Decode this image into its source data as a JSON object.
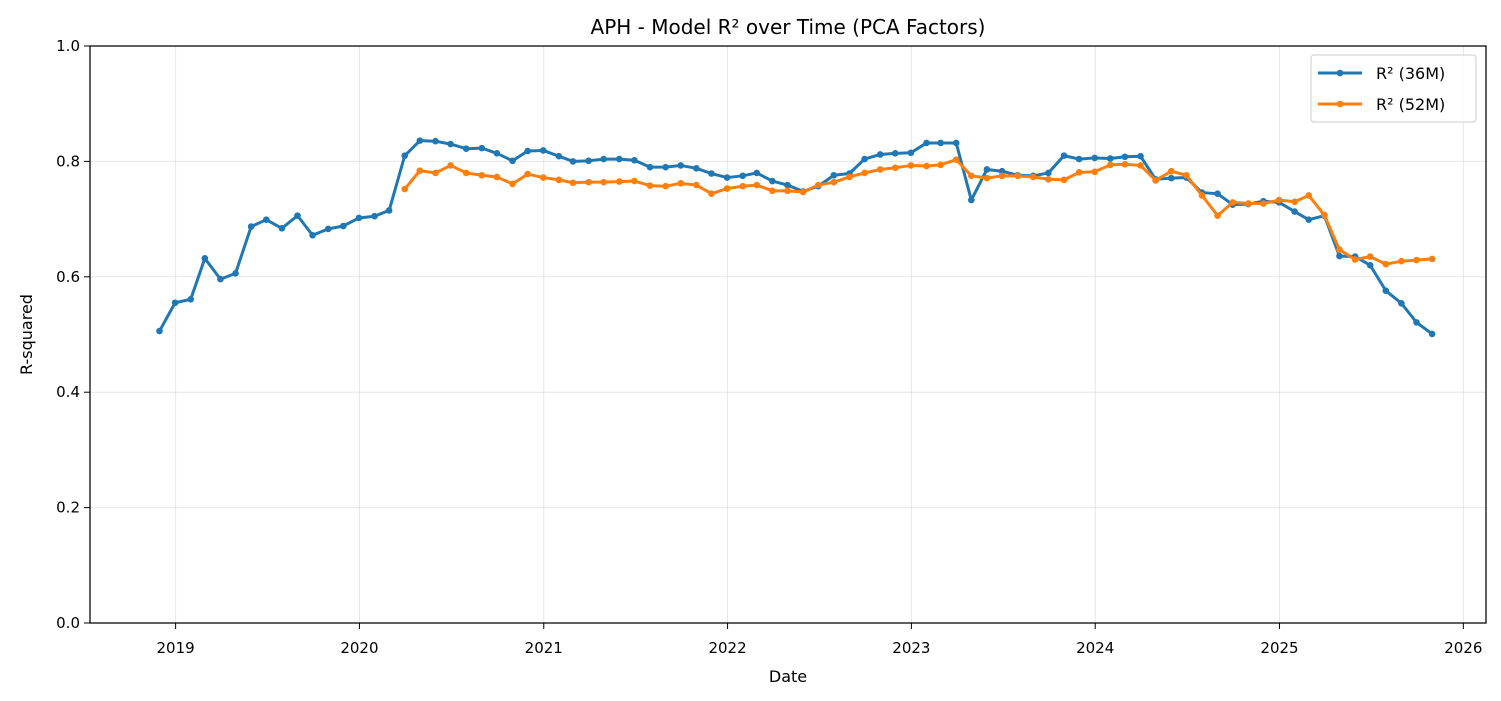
{
  "chart_data": {
    "type": "line",
    "title": "APH - Model R² over Time (PCA Factors)",
    "xlabel": "Date",
    "ylabel": "R-squared",
    "ylim": [
      0.0,
      1.0
    ],
    "xlim": [
      "2018-07-15",
      "2026-02-15"
    ],
    "yticks": [
      0.0,
      0.2,
      0.4,
      0.6,
      0.8,
      1.0
    ],
    "ytick_labels": [
      "0.0",
      "0.2",
      "0.4",
      "0.6",
      "0.8",
      "1.0"
    ],
    "xticks": [
      "2019-01-01",
      "2020-01-01",
      "2021-01-01",
      "2022-01-01",
      "2023-01-01",
      "2024-01-01",
      "2025-01-01",
      "2026-01-01"
    ],
    "xtick_labels": [
      "2019",
      "2020",
      "2021",
      "2022",
      "2023",
      "2024",
      "2025",
      "2026"
    ],
    "grid": true,
    "legend_position": "top-right",
    "series": [
      {
        "name": "R² (36M)",
        "color": "#1f77b4",
        "x": [
          "2018-11-30",
          "2018-12-31",
          "2019-01-31",
          "2019-02-28",
          "2019-03-31",
          "2019-04-30",
          "2019-05-31",
          "2019-06-30",
          "2019-07-31",
          "2019-08-31",
          "2019-09-30",
          "2019-10-31",
          "2019-11-30",
          "2019-12-31",
          "2020-01-31",
          "2020-02-29",
          "2020-03-31",
          "2020-04-30",
          "2020-05-31",
          "2020-06-30",
          "2020-07-31",
          "2020-08-31",
          "2020-09-30",
          "2020-10-31",
          "2020-11-30",
          "2020-12-31",
          "2021-01-31",
          "2021-02-28",
          "2021-03-31",
          "2021-04-30",
          "2021-05-31",
          "2021-06-30",
          "2021-07-31",
          "2021-08-31",
          "2021-09-30",
          "2021-10-31",
          "2021-11-30",
          "2021-12-31",
          "2022-01-31",
          "2022-02-28",
          "2022-03-31",
          "2022-04-30",
          "2022-05-31",
          "2022-06-30",
          "2022-07-31",
          "2022-08-31",
          "2022-09-30",
          "2022-10-31",
          "2022-11-30",
          "2022-12-31",
          "2023-01-31",
          "2023-02-28",
          "2023-03-31",
          "2023-04-30",
          "2023-05-31",
          "2023-06-30",
          "2023-07-31",
          "2023-08-31",
          "2023-09-30",
          "2023-10-31",
          "2023-11-30",
          "2023-12-31",
          "2024-01-31",
          "2024-02-29",
          "2024-03-31",
          "2024-04-30",
          "2024-05-31",
          "2024-06-30",
          "2024-07-31",
          "2024-08-31",
          "2024-09-30",
          "2024-10-31",
          "2024-11-30",
          "2024-12-31",
          "2025-01-31",
          "2025-02-28",
          "2025-03-31",
          "2025-04-30",
          "2025-05-31",
          "2025-06-30",
          "2025-07-31",
          "2025-08-31",
          "2025-09-30",
          "2025-10-31"
        ],
        "values": [
          0.506,
          0.555,
          0.561,
          0.632,
          0.596,
          0.606,
          0.687,
          0.699,
          0.684,
          0.706,
          0.672,
          0.683,
          0.688,
          0.702,
          0.705,
          0.715,
          0.81,
          0.836,
          0.835,
          0.83,
          0.822,
          0.823,
          0.814,
          0.801,
          0.818,
          0.819,
          0.809,
          0.8,
          0.801,
          0.804,
          0.804,
          0.802,
          0.79,
          0.79,
          0.793,
          0.788,
          0.779,
          0.772,
          0.775,
          0.78,
          0.766,
          0.759,
          0.748,
          0.757,
          0.776,
          0.779,
          0.804,
          0.812,
          0.814,
          0.815,
          0.832,
          0.832,
          0.832,
          0.733,
          0.786,
          0.783,
          0.776,
          0.775,
          0.78,
          0.81,
          0.804,
          0.806,
          0.805,
          0.808,
          0.809,
          0.769,
          0.771,
          0.772,
          0.746,
          0.744,
          0.725,
          0.726,
          0.731,
          0.729,
          0.713,
          0.699,
          0.706,
          0.636,
          0.635,
          0.62,
          0.576,
          0.554,
          0.521,
          0.501
        ]
      },
      {
        "name": "R² (52M)",
        "color": "#ff7f0e",
        "x": [
          "2020-03-31",
          "2020-04-30",
          "2020-05-31",
          "2020-06-30",
          "2020-07-31",
          "2020-08-31",
          "2020-09-30",
          "2020-10-31",
          "2020-11-30",
          "2020-12-31",
          "2021-01-31",
          "2021-02-28",
          "2021-03-31",
          "2021-04-30",
          "2021-05-31",
          "2021-06-30",
          "2021-07-31",
          "2021-08-31",
          "2021-09-30",
          "2021-10-31",
          "2021-11-30",
          "2021-12-31",
          "2022-01-31",
          "2022-02-28",
          "2022-03-31",
          "2022-04-30",
          "2022-05-31",
          "2022-06-30",
          "2022-07-31",
          "2022-08-31",
          "2022-09-30",
          "2022-10-31",
          "2022-11-30",
          "2022-12-31",
          "2023-01-31",
          "2023-02-28",
          "2023-03-31",
          "2023-04-30",
          "2023-05-31",
          "2023-06-30",
          "2023-07-31",
          "2023-08-31",
          "2023-09-30",
          "2023-10-31",
          "2023-11-30",
          "2023-12-31",
          "2024-01-31",
          "2024-02-29",
          "2024-03-31",
          "2024-04-30",
          "2024-05-31",
          "2024-06-30",
          "2024-07-31",
          "2024-08-31",
          "2024-09-30",
          "2024-10-31",
          "2024-11-30",
          "2024-12-31",
          "2025-01-31",
          "2025-02-28",
          "2025-03-31",
          "2025-04-30",
          "2025-05-31",
          "2025-06-30",
          "2025-07-31",
          "2025-08-31",
          "2025-09-30",
          "2025-10-31"
        ],
        "values": [
          0.752,
          0.784,
          0.78,
          0.793,
          0.78,
          0.776,
          0.773,
          0.761,
          0.778,
          0.772,
          0.768,
          0.763,
          0.764,
          0.764,
          0.765,
          0.766,
          0.758,
          0.757,
          0.762,
          0.759,
          0.744,
          0.753,
          0.757,
          0.759,
          0.749,
          0.749,
          0.747,
          0.759,
          0.764,
          0.773,
          0.78,
          0.786,
          0.789,
          0.793,
          0.792,
          0.794,
          0.803,
          0.775,
          0.771,
          0.775,
          0.775,
          0.773,
          0.769,
          0.768,
          0.781,
          0.782,
          0.794,
          0.795,
          0.793,
          0.767,
          0.783,
          0.776,
          0.741,
          0.706,
          0.729,
          0.727,
          0.727,
          0.733,
          0.73,
          0.741,
          0.707,
          0.647,
          0.63,
          0.635,
          0.622,
          0.627,
          0.629,
          0.631
        ]
      }
    ]
  }
}
